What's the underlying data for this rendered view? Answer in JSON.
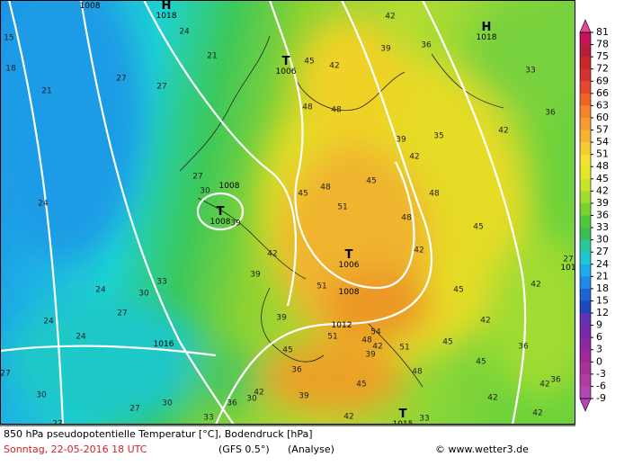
{
  "map": {
    "title": "850 hPa pseudopotentielle Temperatur [°C], Bodendruck [hPa]",
    "date": "Sonntag, 22-05-2016  18 UTC",
    "model": "(GFS 0.5°)",
    "run": "(Analyse)",
    "source": "© www.wetter3.de",
    "colorbar": {
      "ticks": [
        81,
        78,
        75,
        72,
        69,
        66,
        63,
        60,
        57,
        54,
        51,
        48,
        45,
        42,
        39,
        36,
        33,
        30,
        27,
        24,
        21,
        18,
        15,
        12,
        9,
        6,
        3,
        0,
        -3,
        -6,
        -9
      ],
      "colors": [
        "#c8145a",
        "#b41e3c",
        "#c82828",
        "#d23232",
        "#e6462d",
        "#f06428",
        "#f5822d",
        "#f59b32",
        "#f5b432",
        "#f5cd32",
        "#f5e132",
        "#e6e628",
        "#c8e628",
        "#a0dc32",
        "#78d232",
        "#50c83c",
        "#3cbe50",
        "#28c89b",
        "#1ec8d2",
        "#1eaaeb",
        "#1e8ce6",
        "#1e64d2",
        "#1e46be",
        "#6432b4",
        "#7828aa",
        "#8c28a0",
        "#a0289b",
        "#aa3296",
        "#b43ca0",
        "#b446b4"
      ]
    },
    "pressure_systems": [
      {
        "symbol": "H",
        "pressure": 1018
      },
      {
        "symbol": "T",
        "pressure": 1006
      },
      {
        "symbol": "H",
        "pressure": 1018
      },
      {
        "symbol": "T",
        "pressure": 1008
      },
      {
        "symbol": "T",
        "pressure": 1006
      },
      {
        "symbol": "T",
        "pressure": 1015
      }
    ],
    "isobar_labels": [
      1008,
      1008,
      1008,
      1012,
      1016,
      101
    ],
    "contour_labels": [
      24,
      15,
      21,
      18,
      27,
      21,
      27,
      45,
      42,
      42,
      39,
      36,
      33,
      48,
      48,
      36,
      42,
      39,
      35,
      42,
      24,
      27,
      30,
      45,
      48,
      45,
      48,
      51,
      48,
      39,
      42,
      39,
      42,
      45,
      33,
      24,
      30,
      51,
      45,
      42,
      27,
      27,
      24,
      39,
      54,
      51,
      48,
      42,
      51,
      39,
      42,
      45,
      36,
      48,
      24,
      45,
      27,
      36,
      45,
      30,
      30,
      42,
      39,
      36,
      30,
      45,
      42,
      36,
      27,
      27,
      33,
      42,
      42,
      42,
      33
    ]
  }
}
